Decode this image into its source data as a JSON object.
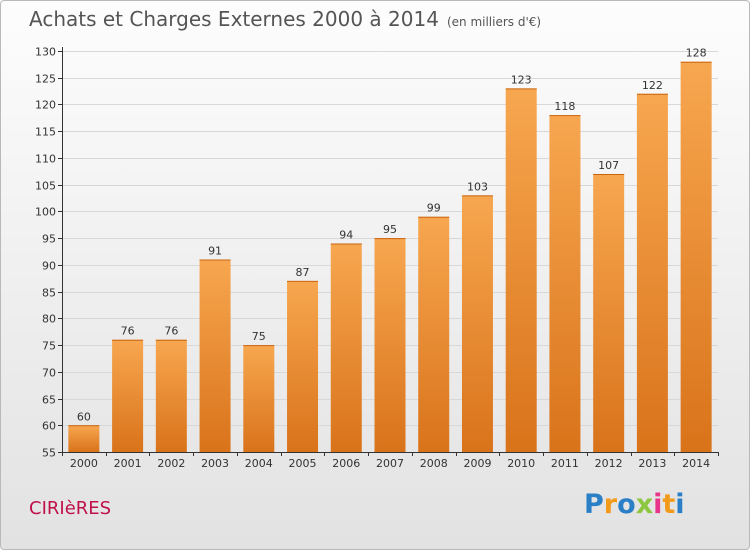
{
  "title": "Achats et Charges Externes 2000 à 2014",
  "subtitle": "(en milliers d'€)",
  "commune": "CIRIèRES",
  "logo": {
    "letters": [
      "P",
      "r",
      "o",
      "x",
      "i",
      "t",
      "i"
    ],
    "colors": [
      "#2a7fc6",
      "#f29a1a",
      "#2a7fc6",
      "#8dc63f",
      "#e8348a",
      "#f29a1a",
      "#2a7fc6"
    ]
  },
  "colors": {
    "bar_top": "#f7a750",
    "bar_bottom": "#d9731a",
    "grid": "#d8d8d8",
    "axis": "#333333",
    "label": "#333333"
  },
  "chart_data": {
    "type": "bar",
    "categories": [
      "2000",
      "2001",
      "2002",
      "2003",
      "2004",
      "2005",
      "2006",
      "2007",
      "2008",
      "2009",
      "2010",
      "2011",
      "2012",
      "2013",
      "2014"
    ],
    "values": [
      60,
      76,
      76,
      91,
      75,
      87,
      94,
      95,
      99,
      103,
      123,
      118,
      107,
      122,
      128
    ],
    "ylim": [
      55,
      130
    ],
    "yticks": [
      55,
      60,
      65,
      70,
      75,
      80,
      85,
      90,
      95,
      100,
      105,
      110,
      115,
      120,
      125,
      130
    ],
    "grid": true,
    "title": "Achats et Charges Externes 2000 à 2014",
    "xlabel": "",
    "ylabel": ""
  }
}
